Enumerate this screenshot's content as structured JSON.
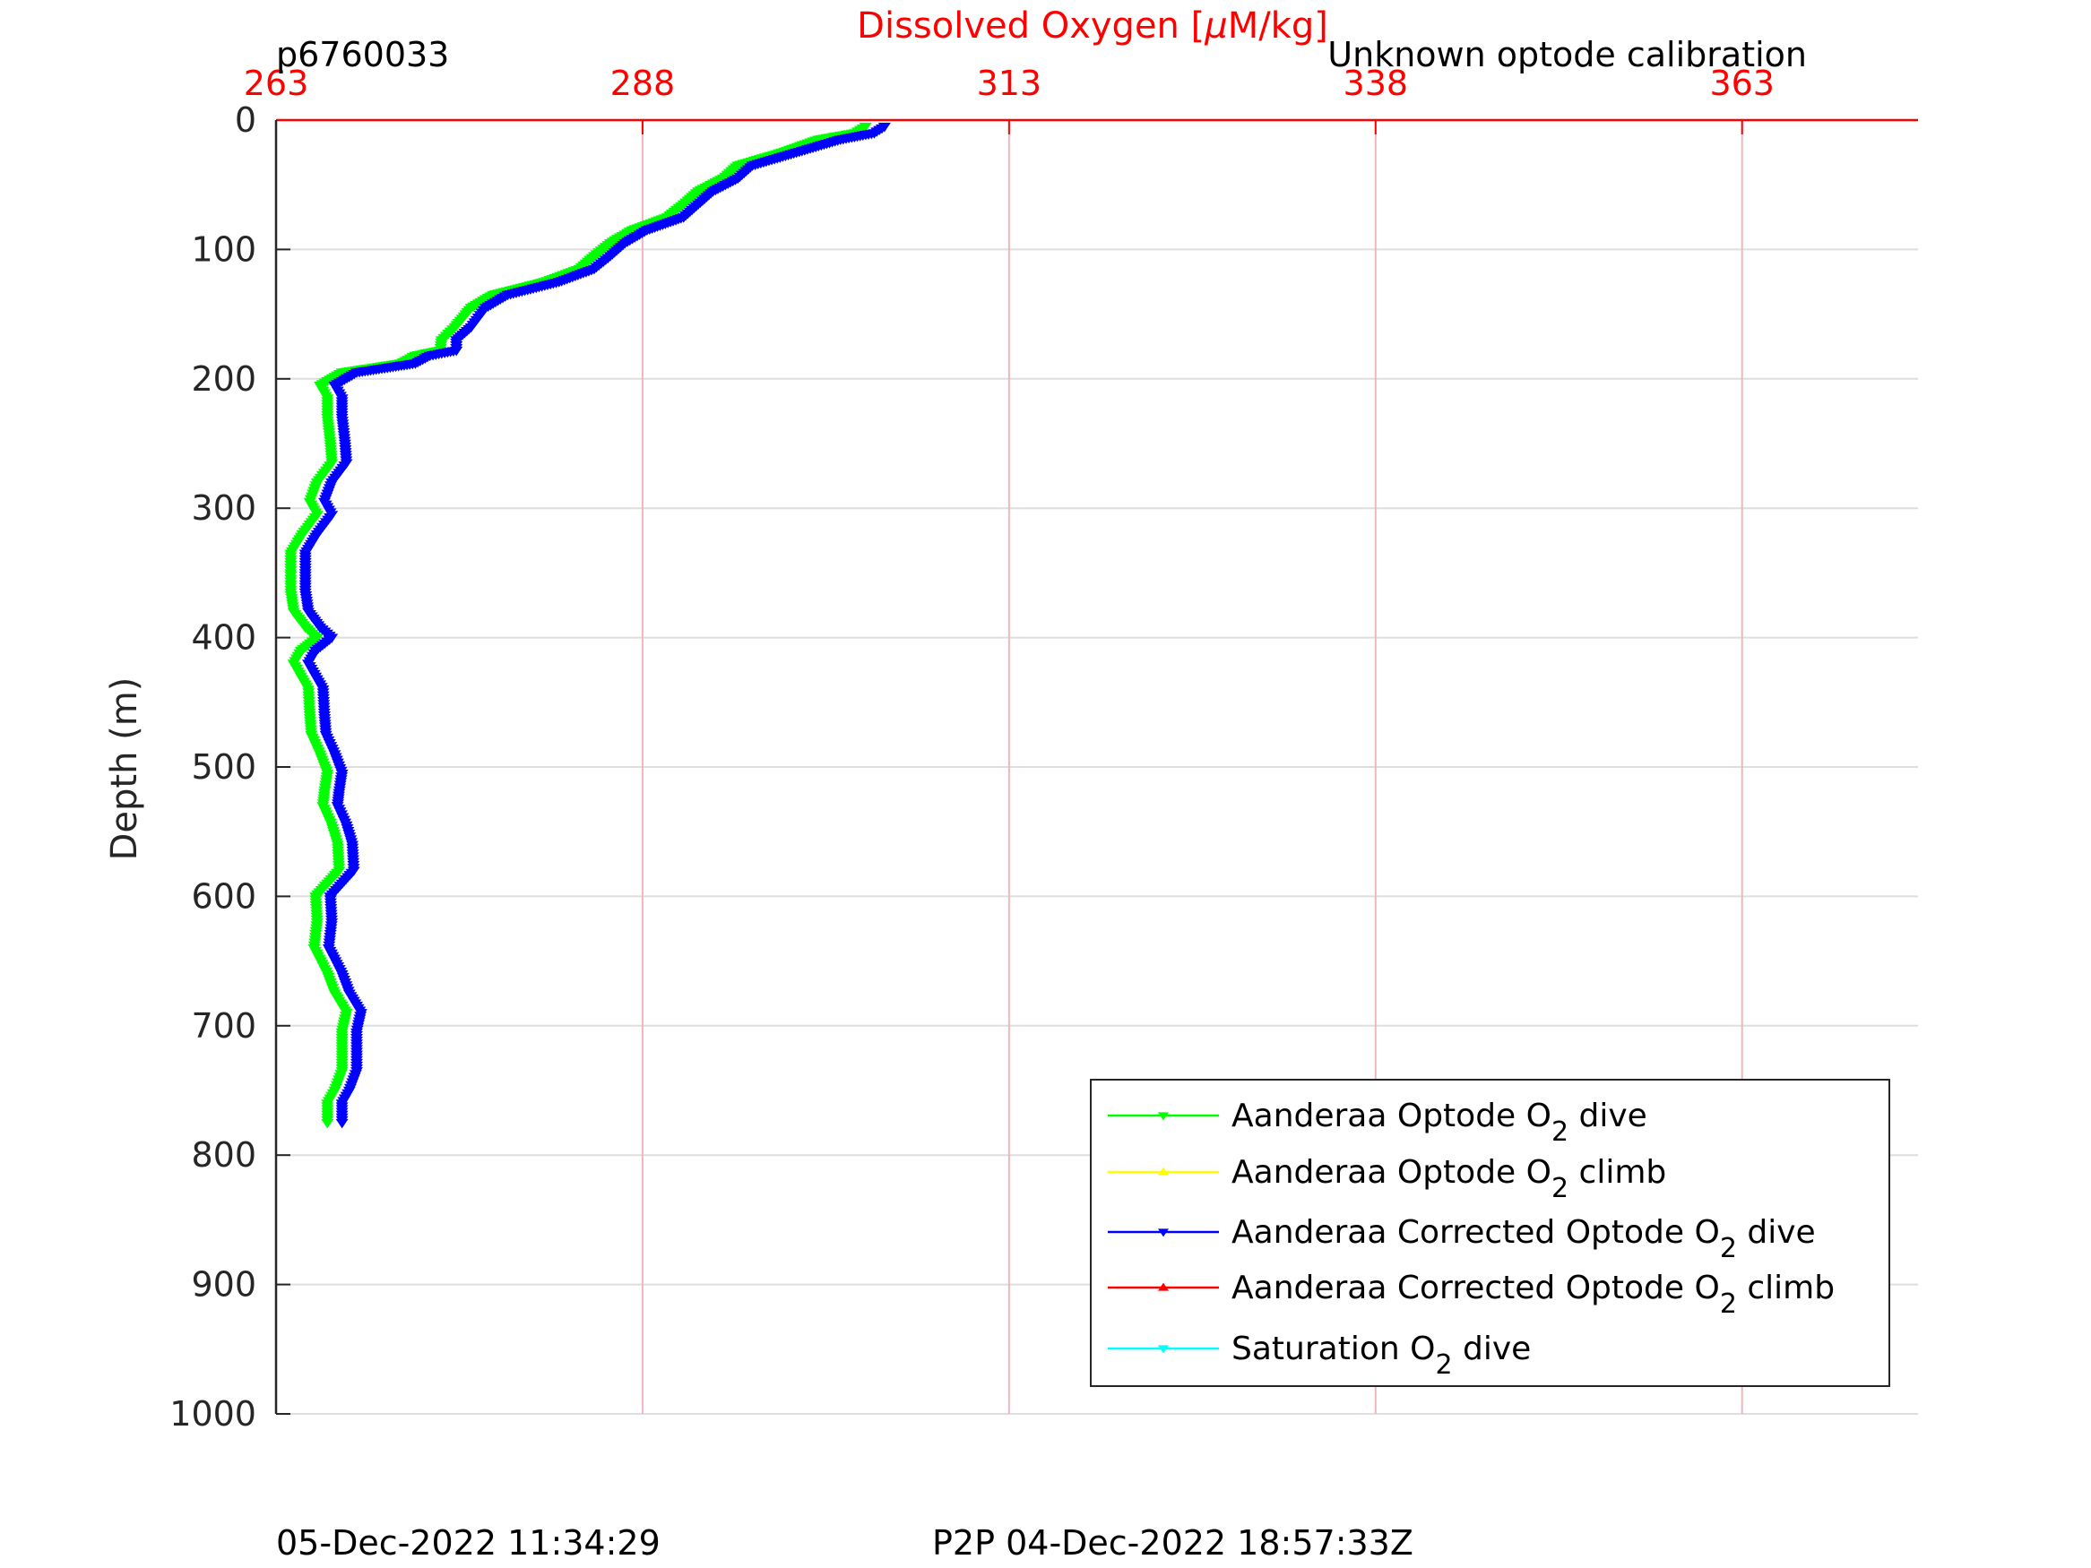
{
  "header": {
    "glider_id": "p6760033",
    "calibration_note": "Unknown optode calibration"
  },
  "footer": {
    "generated": "05-Dec-2022 11:34:29",
    "p2p": "P2P 04-Dec-2022 18:57:33Z"
  },
  "colors": {
    "axis_top": "#ff0000",
    "axis_left": "#262626",
    "grid_x": "#f2b5c0",
    "grid_y": "#dedede",
    "optode_dive": "#00ff00",
    "optode_climb": "#ffff00",
    "corrected_dive": "#0000ff",
    "corrected_climb": "#ff0000",
    "saturation_dive": "#00ffff"
  },
  "chart_data": {
    "type": "line",
    "xlabel_prefix": "Dissolved Oxygen [",
    "xlabel_mu": "μ",
    "xlabel_suffix": "M/kg]",
    "ylabel": "Depth (m)",
    "xlim": [
      263,
      375
    ],
    "ylim": [
      0,
      1000
    ],
    "y_reversed": true,
    "x_axis_position": "top",
    "x_ticks": [
      263,
      288,
      313,
      338,
      363
    ],
    "y_ticks": [
      0,
      100,
      200,
      300,
      400,
      500,
      600,
      700,
      800,
      900,
      1000
    ],
    "grid": true,
    "legend_position": "bottom-right",
    "legend": [
      {
        "pre": "Aanderaa Optode O",
        "sub": "2",
        "post": " dive",
        "color_key": "optode_dive",
        "marker": "down"
      },
      {
        "pre": "Aanderaa Optode O",
        "sub": "2",
        "post": " climb",
        "color_key": "optode_climb",
        "marker": "up"
      },
      {
        "pre": "Aanderaa Corrected Optode O",
        "sub": "2",
        "post": " dive",
        "color_key": "corrected_dive",
        "marker": "down"
      },
      {
        "pre": "Aanderaa Corrected Optode O",
        "sub": "2",
        "post": " climb",
        "color_key": "corrected_climb",
        "marker": "up"
      },
      {
        "pre": "Saturation O",
        "sub": "2",
        "post": " dive",
        "color_key": "saturation_dive",
        "marker": "down"
      }
    ],
    "series": [
      {
        "name": "Aanderaa Optode O2 dive",
        "color_key": "optode_dive",
        "points": [
          [
            303.2,
            5
          ],
          [
            302.5,
            10
          ],
          [
            300,
            15
          ],
          [
            297.5,
            25
          ],
          [
            294.5,
            35
          ],
          [
            293.5,
            45
          ],
          [
            291.8,
            55
          ],
          [
            290.8,
            65
          ],
          [
            289.7,
            75
          ],
          [
            287.3,
            85
          ],
          [
            285.8,
            95
          ],
          [
            284.7,
            105
          ],
          [
            283.7,
            115
          ],
          [
            281.3,
            125
          ],
          [
            277.8,
            135
          ],
          [
            276.3,
            145
          ],
          [
            275.2,
            160
          ],
          [
            274.3,
            170
          ],
          [
            274.2,
            178
          ],
          [
            272.5,
            182
          ],
          [
            271.5,
            188
          ],
          [
            267.5,
            195
          ],
          [
            266,
            205
          ],
          [
            266.5,
            215
          ],
          [
            266.5,
            230
          ],
          [
            266.7,
            250
          ],
          [
            266.8,
            265
          ],
          [
            265.8,
            280
          ],
          [
            265.3,
            295
          ],
          [
            265.8,
            305
          ],
          [
            264.8,
            320
          ],
          [
            264,
            335
          ],
          [
            264,
            350
          ],
          [
            264,
            365
          ],
          [
            264.2,
            380
          ],
          [
            265,
            392
          ],
          [
            265.8,
            400
          ],
          [
            264.7,
            410
          ],
          [
            264.2,
            420
          ],
          [
            265.2,
            440
          ],
          [
            265.3,
            460
          ],
          [
            265.4,
            475
          ],
          [
            266,
            490
          ],
          [
            266.5,
            505
          ],
          [
            266.3,
            520
          ],
          [
            266.2,
            530
          ],
          [
            266.8,
            545
          ],
          [
            267.2,
            560
          ],
          [
            267.3,
            580
          ],
          [
            266.5,
            590
          ],
          [
            265.7,
            600
          ],
          [
            265.8,
            620
          ],
          [
            265.6,
            640
          ],
          [
            266.5,
            660
          ],
          [
            267,
            675
          ],
          [
            267.8,
            690
          ],
          [
            267.5,
            705
          ],
          [
            267.5,
            720
          ],
          [
            267.5,
            735
          ],
          [
            267,
            750
          ],
          [
            266.5,
            760
          ],
          [
            266.5,
            775
          ]
        ]
      },
      {
        "name": "Aanderaa Corrected Optode O2 dive",
        "color_key": "corrected_dive",
        "points": [
          [
            304.5,
            5
          ],
          [
            303.8,
            10
          ],
          [
            301.5,
            15
          ],
          [
            298.5,
            25
          ],
          [
            295.5,
            35
          ],
          [
            294.5,
            45
          ],
          [
            292.8,
            55
          ],
          [
            291.8,
            65
          ],
          [
            290.8,
            75
          ],
          [
            288.3,
            85
          ],
          [
            286.8,
            95
          ],
          [
            285.8,
            105
          ],
          [
            284.7,
            115
          ],
          [
            282.3,
            125
          ],
          [
            278.8,
            135
          ],
          [
            277.3,
            145
          ],
          [
            276.3,
            160
          ],
          [
            275.3,
            170
          ],
          [
            275.3,
            178
          ],
          [
            273.5,
            182
          ],
          [
            272.5,
            188
          ],
          [
            268.5,
            195
          ],
          [
            267,
            205
          ],
          [
            267.5,
            215
          ],
          [
            267.5,
            230
          ],
          [
            267.7,
            250
          ],
          [
            267.8,
            265
          ],
          [
            266.8,
            280
          ],
          [
            266.3,
            295
          ],
          [
            266.8,
            305
          ],
          [
            265.8,
            320
          ],
          [
            265,
            335
          ],
          [
            265,
            350
          ],
          [
            265,
            365
          ],
          [
            265.2,
            380
          ],
          [
            266,
            392
          ],
          [
            266.8,
            400
          ],
          [
            265.7,
            410
          ],
          [
            265.2,
            420
          ],
          [
            266.2,
            440
          ],
          [
            266.3,
            460
          ],
          [
            266.4,
            475
          ],
          [
            267,
            490
          ],
          [
            267.5,
            505
          ],
          [
            267.3,
            520
          ],
          [
            267.2,
            530
          ],
          [
            267.8,
            545
          ],
          [
            268.2,
            560
          ],
          [
            268.3,
            580
          ],
          [
            267.5,
            590
          ],
          [
            266.7,
            600
          ],
          [
            266.8,
            620
          ],
          [
            266.6,
            640
          ],
          [
            267.5,
            660
          ],
          [
            268,
            675
          ],
          [
            268.8,
            690
          ],
          [
            268.5,
            705
          ],
          [
            268.5,
            720
          ],
          [
            268.5,
            735
          ],
          [
            268,
            750
          ],
          [
            267.5,
            760
          ],
          [
            267.5,
            775
          ]
        ]
      },
      {
        "name": "Aanderaa Optode O2 climb",
        "color_key": "optode_climb",
        "points": []
      },
      {
        "name": "Aanderaa Corrected Optode O2 climb",
        "color_key": "corrected_climb",
        "points": []
      },
      {
        "name": "Saturation O2 dive",
        "color_key": "saturation_dive",
        "points": []
      }
    ]
  }
}
